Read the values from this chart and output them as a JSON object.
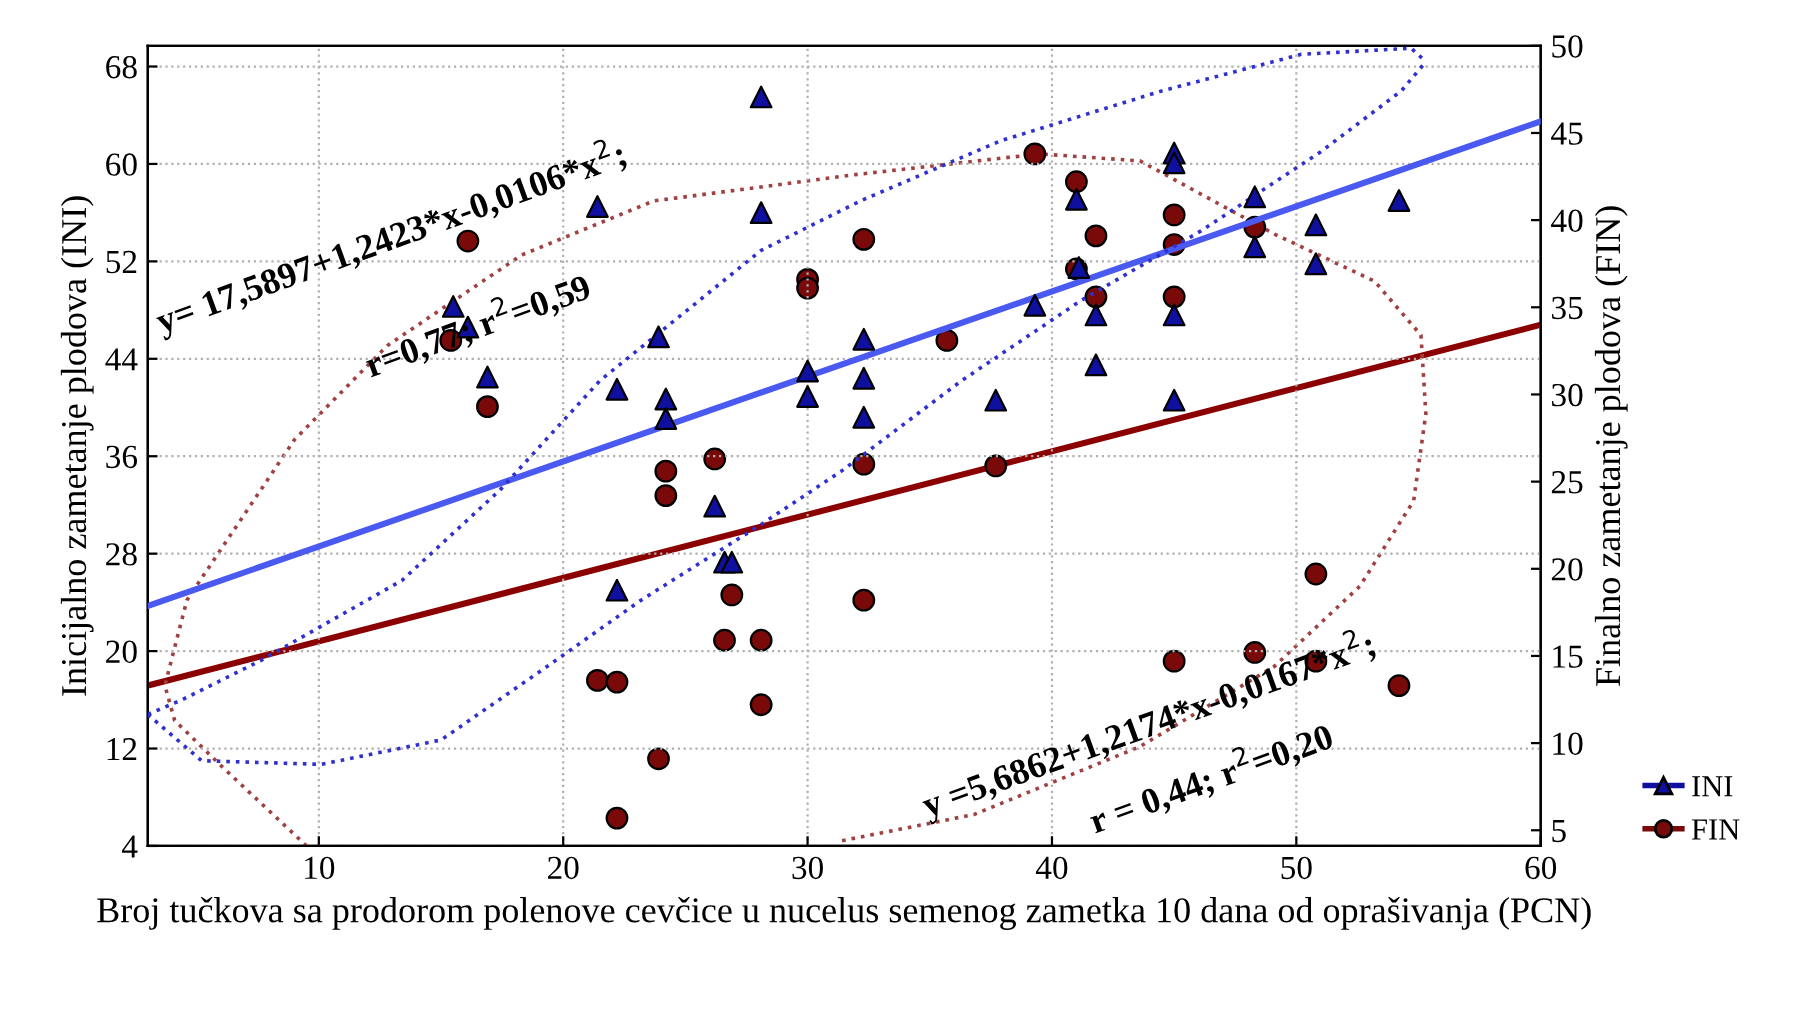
{
  "chart_data": {
    "type": "scatter",
    "xlabel": "Broj tučkova sa prodorom polenove cevčice u nucelus semenog zametka 10 dana od oprašivanja (PCN)",
    "ylabel": "Inicijalno zametanje plodova (INI)",
    "y2label": "Finalno zametanje plodova (FIN)",
    "xlim": [
      3,
      60
    ],
    "xticks": [
      10,
      20,
      30,
      40,
      50,
      60
    ],
    "ylim": [
      4,
      69.7
    ],
    "yticks": [
      4,
      12,
      20,
      28,
      36,
      44,
      52,
      60,
      68
    ],
    "y2lim": [
      4.1,
      50
    ],
    "y2ticks": [
      5,
      10,
      15,
      20,
      25,
      30,
      35,
      40,
      45,
      50
    ],
    "grid": true,
    "legend": "right",
    "series": [
      {
        "name": "INI",
        "marker": "triangle",
        "color": "#1010a0",
        "x": [
          15.5,
          16.1,
          16.9,
          21.4,
          22.2,
          22.2,
          23.9,
          24.2,
          24.2,
          26.2,
          26.6,
          26.9,
          28.1,
          28.1,
          30.0,
          30.0,
          32.3,
          32.3,
          32.3,
          37.7,
          39.3,
          41.0,
          41.1,
          41.8,
          41.8,
          45.0,
          45.0,
          45.0,
          45.0,
          48.3,
          48.3,
          50.8,
          50.8,
          54.2
        ],
        "values": [
          48.3,
          46.6,
          42.5,
          56.5,
          41.5,
          25.0,
          45.8,
          40.7,
          39.1,
          31.9,
          27.3,
          27.3,
          56.0,
          65.5,
          43.0,
          40.9,
          45.6,
          42.4,
          39.2,
          40.6,
          48.4,
          57.1,
          51.5,
          47.6,
          43.5,
          60.9,
          60.1,
          47.6,
          40.6,
          57.3,
          53.2,
          55.0,
          51.8,
          57.0
        ]
      },
      {
        "name": "FIN",
        "marker": "circle",
        "axis": "y2",
        "color": "#7a0a0a",
        "x": [
          15.4,
          16.1,
          16.9,
          21.4,
          22.2,
          22.2,
          23.9,
          24.2,
          24.2,
          26.2,
          26.6,
          26.9,
          28.1,
          28.1,
          30.0,
          30.0,
          32.3,
          32.3,
          32.3,
          35.7,
          37.7,
          39.3,
          41.0,
          41.0,
          41.8,
          41.8,
          45.0,
          45.0,
          45.0,
          45.0,
          48.3,
          48.3,
          50.8,
          50.8,
          54.2
        ],
        "values": [
          33.1,
          38.8,
          29.3,
          13.6,
          13.5,
          5.7,
          9.1,
          25.6,
          24.2,
          26.3,
          15.9,
          18.5,
          15.9,
          12.2,
          36.6,
          36.1,
          38.9,
          26.0,
          18.2,
          33.1,
          25.9,
          43.8,
          42.2,
          37.2,
          39.1,
          35.6,
          40.3,
          38.6,
          35.6,
          14.7,
          39.6,
          15.2,
          19.7,
          14.7,
          13.3
        ]
      },
      {
        "type": "line",
        "color": "#4a5af0",
        "line_style": "solid",
        "x": [
          3,
          60
        ],
        "values": [
          23.7,
          63.5
        ]
      },
      {
        "type": "line",
        "axis": "y2",
        "color": "#8b0000",
        "line_style": "solid",
        "x": [
          3,
          60
        ],
        "values": [
          13.3,
          34.0
        ]
      },
      {
        "type": "line",
        "color": "#3030d0",
        "line_style": "dotted",
        "x": [
          3.0,
          5.2,
          10.1,
          15.0,
          19.1,
          23.2,
          28.1,
          31.4,
          36.3,
          41.2,
          46.1,
          51.0,
          54.3,
          55.3
        ],
        "values": [
          14.8,
          11.0,
          10.7,
          12.7,
          18.4,
          24.2,
          30.4,
          34.8,
          42.2,
          48.8,
          54.5,
          61.0,
          66.0,
          68.4
        ]
      },
      {
        "type": "line",
        "color": "#3030d0",
        "line_style": "dotted",
        "x": [
          3.0,
          4.4,
          7.6,
          13.4,
          17.4,
          21.5,
          28.1,
          32.2,
          37.9,
          44.5,
          50.2,
          54.7,
          55.3
        ],
        "values": [
          14.8,
          16.0,
          19.2,
          25.8,
          33.2,
          42.2,
          52.9,
          57.0,
          61.9,
          66.0,
          69.0,
          69.5,
          68.4
        ]
      },
      {
        "type": "line",
        "axis": "y2",
        "color": "#a04040",
        "line_style": "dotted",
        "x": [
          9.5,
          6.0,
          4.1,
          3.7,
          4.6,
          9.0,
          12.8,
          18.3,
          23.7,
          31.9,
          39.5,
          43.6,
          49.1,
          53.2,
          55.1,
          55.3,
          54.8,
          52.6,
          49.1,
          43.6,
          36.8,
          31.4
        ],
        "values": [
          4.1,
          8.7,
          11.3,
          13.3,
          18.2,
          27.4,
          32.8,
          38.0,
          41.1,
          42.6,
          43.8,
          43.4,
          39.2,
          36.5,
          33.4,
          28.9,
          23.9,
          19.0,
          14.4,
          9.8,
          5.9,
          4.4
        ]
      }
    ],
    "annotations": [
      "y= 17,5897+1,2423*x-0,0106*x$^{2}$;",
      "r=0,77; r$^{2}$=0,59",
      "y =5,6862+1,2174*x-0,0167*x$^{2}$;",
      "r = 0,44; r$^{2}$=0,20"
    ]
  }
}
